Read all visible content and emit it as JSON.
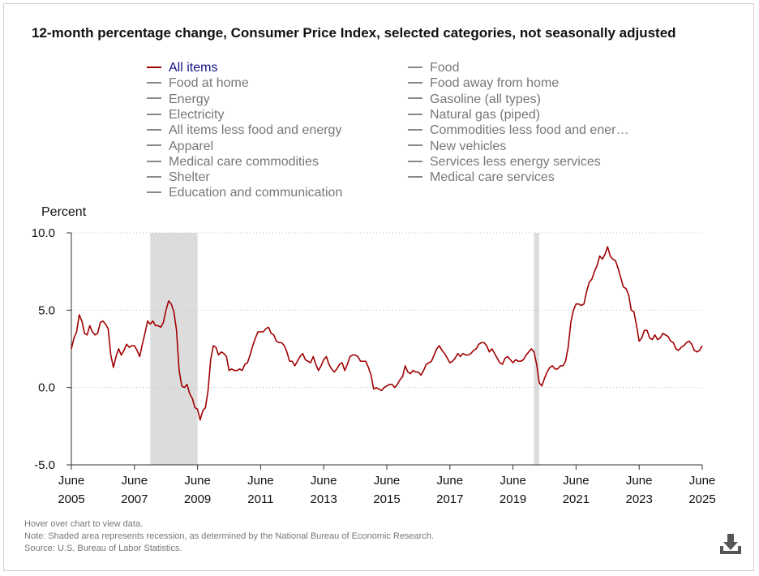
{
  "title": "12-month percentage change, Consumer Price Index, selected categories, not seasonally adjusted",
  "legend": [
    {
      "label": "All items",
      "active": true
    },
    {
      "label": "Food",
      "active": false
    },
    {
      "label": "Food at home",
      "active": false
    },
    {
      "label": "Food away from home",
      "active": false
    },
    {
      "label": "Energy",
      "active": false
    },
    {
      "label": "Gasoline (all types)",
      "active": false
    },
    {
      "label": "Electricity",
      "active": false
    },
    {
      "label": "Natural gas (piped)",
      "active": false
    },
    {
      "label": "All items less food and energy",
      "active": false
    },
    {
      "label": "Commodities less food and ener…",
      "active": false
    },
    {
      "label": "Apparel",
      "active": false
    },
    {
      "label": "New vehicles",
      "active": false
    },
    {
      "label": "Medical care commodities",
      "active": false
    },
    {
      "label": "Services less energy services",
      "active": false
    },
    {
      "label": "Shelter",
      "active": false
    },
    {
      "label": "Medical care services",
      "active": false
    },
    {
      "label": "Education and communication",
      "active": false
    }
  ],
  "chart_data": {
    "type": "line",
    "ylabel": "Percent",
    "ylim": [
      -5.0,
      10.0
    ],
    "yticks": [
      "10.0",
      "5.0",
      "0.0",
      "-5.0"
    ],
    "ytick_values": [
      10,
      5,
      0,
      -5
    ],
    "xlim": [
      "2005-06",
      "2025-06"
    ],
    "xticks": [
      {
        "month": "June",
        "year": "2005",
        "date": "2005-06"
      },
      {
        "month": "June",
        "year": "2007",
        "date": "2007-06"
      },
      {
        "month": "June",
        "year": "2009",
        "date": "2009-06"
      },
      {
        "month": "June",
        "year": "2011",
        "date": "2011-06"
      },
      {
        "month": "June",
        "year": "2013",
        "date": "2013-06"
      },
      {
        "month": "June",
        "year": "2015",
        "date": "2015-06"
      },
      {
        "month": "June",
        "year": "2017",
        "date": "2017-06"
      },
      {
        "month": "June",
        "year": "2019",
        "date": "2019-06"
      },
      {
        "month": "June",
        "year": "2021",
        "date": "2021-06"
      },
      {
        "month": "June",
        "year": "2023",
        "date": "2023-06"
      },
      {
        "month": "June",
        "year": "2025",
        "date": "2025-06"
      }
    ],
    "recessions": [
      {
        "start": "2007-12",
        "end": "2009-06"
      },
      {
        "start": "2020-02",
        "end": "2020-04"
      }
    ],
    "grid": "horizontal dotted",
    "series_color": "#a00000",
    "series": [
      {
        "name": "All items",
        "points": [
          [
            "2005-06",
            2.5
          ],
          [
            "2005-07",
            3.2
          ],
          [
            "2005-08",
            3.6
          ],
          [
            "2005-09",
            4.7
          ],
          [
            "2005-10",
            4.3
          ],
          [
            "2005-11",
            3.5
          ],
          [
            "2005-12",
            3.4
          ],
          [
            "2006-01",
            4.0
          ],
          [
            "2006-02",
            3.6
          ],
          [
            "2006-03",
            3.4
          ],
          [
            "2006-04",
            3.5
          ],
          [
            "2006-05",
            4.2
          ],
          [
            "2006-06",
            4.3
          ],
          [
            "2006-07",
            4.1
          ],
          [
            "2006-08",
            3.8
          ],
          [
            "2006-09",
            2.1
          ],
          [
            "2006-10",
            1.3
          ],
          [
            "2006-11",
            2.0
          ],
          [
            "2006-12",
            2.5
          ],
          [
            "2007-01",
            2.1
          ],
          [
            "2007-02",
            2.4
          ],
          [
            "2007-03",
            2.8
          ],
          [
            "2007-04",
            2.6
          ],
          [
            "2007-05",
            2.7
          ],
          [
            "2007-06",
            2.7
          ],
          [
            "2007-07",
            2.4
          ],
          [
            "2007-08",
            2.0
          ],
          [
            "2007-09",
            2.8
          ],
          [
            "2007-10",
            3.5
          ],
          [
            "2007-11",
            4.3
          ],
          [
            "2007-12",
            4.1
          ],
          [
            "2008-01",
            4.3
          ],
          [
            "2008-02",
            4.0
          ],
          [
            "2008-03",
            4.0
          ],
          [
            "2008-04",
            3.9
          ],
          [
            "2008-05",
            4.2
          ],
          [
            "2008-06",
            5.0
          ],
          [
            "2008-07",
            5.6
          ],
          [
            "2008-08",
            5.4
          ],
          [
            "2008-09",
            4.9
          ],
          [
            "2008-10",
            3.7
          ],
          [
            "2008-11",
            1.1
          ],
          [
            "2008-12",
            0.1
          ],
          [
            "2009-01",
            0.0
          ],
          [
            "2009-02",
            0.2
          ],
          [
            "2009-03",
            -0.4
          ],
          [
            "2009-04",
            -0.7
          ],
          [
            "2009-05",
            -1.3
          ],
          [
            "2009-06",
            -1.4
          ],
          [
            "2009-07",
            -2.1
          ],
          [
            "2009-08",
            -1.5
          ],
          [
            "2009-09",
            -1.3
          ],
          [
            "2009-10",
            -0.2
          ],
          [
            "2009-11",
            1.8
          ],
          [
            "2009-12",
            2.7
          ],
          [
            "2010-01",
            2.6
          ],
          [
            "2010-02",
            2.1
          ],
          [
            "2010-03",
            2.3
          ],
          [
            "2010-04",
            2.2
          ],
          [
            "2010-05",
            2.0
          ],
          [
            "2010-06",
            1.1
          ],
          [
            "2010-07",
            1.2
          ],
          [
            "2010-08",
            1.1
          ],
          [
            "2010-09",
            1.1
          ],
          [
            "2010-10",
            1.2
          ],
          [
            "2010-11",
            1.1
          ],
          [
            "2010-12",
            1.5
          ],
          [
            "2011-01",
            1.6
          ],
          [
            "2011-02",
            2.1
          ],
          [
            "2011-03",
            2.7
          ],
          [
            "2011-04",
            3.2
          ],
          [
            "2011-05",
            3.6
          ],
          [
            "2011-06",
            3.6
          ],
          [
            "2011-07",
            3.6
          ],
          [
            "2011-08",
            3.8
          ],
          [
            "2011-09",
            3.9
          ],
          [
            "2011-10",
            3.5
          ],
          [
            "2011-11",
            3.4
          ],
          [
            "2011-12",
            3.0
          ],
          [
            "2012-01",
            2.9
          ],
          [
            "2012-02",
            2.9
          ],
          [
            "2012-03",
            2.7
          ],
          [
            "2012-04",
            2.3
          ],
          [
            "2012-05",
            1.7
          ],
          [
            "2012-06",
            1.7
          ],
          [
            "2012-07",
            1.4
          ],
          [
            "2012-08",
            1.7
          ],
          [
            "2012-09",
            2.0
          ],
          [
            "2012-10",
            2.2
          ],
          [
            "2012-11",
            1.8
          ],
          [
            "2012-12",
            1.7
          ],
          [
            "2013-01",
            1.6
          ],
          [
            "2013-02",
            2.0
          ],
          [
            "2013-03",
            1.5
          ],
          [
            "2013-04",
            1.1
          ],
          [
            "2013-05",
            1.4
          ],
          [
            "2013-06",
            1.8
          ],
          [
            "2013-07",
            2.0
          ],
          [
            "2013-08",
            1.5
          ],
          [
            "2013-09",
            1.2
          ],
          [
            "2013-10",
            1.0
          ],
          [
            "2013-11",
            1.2
          ],
          [
            "2013-12",
            1.5
          ],
          [
            "2014-01",
            1.6
          ],
          [
            "2014-02",
            1.1
          ],
          [
            "2014-03",
            1.5
          ],
          [
            "2014-04",
            2.0
          ],
          [
            "2014-05",
            2.1
          ],
          [
            "2014-06",
            2.1
          ],
          [
            "2014-07",
            2.0
          ],
          [
            "2014-08",
            1.7
          ],
          [
            "2014-09",
            1.7
          ],
          [
            "2014-10",
            1.7
          ],
          [
            "2014-11",
            1.3
          ],
          [
            "2014-12",
            0.8
          ],
          [
            "2015-01",
            -0.1
          ],
          [
            "2015-02",
            0.0
          ],
          [
            "2015-03",
            -0.1
          ],
          [
            "2015-04",
            -0.2
          ],
          [
            "2015-05",
            0.0
          ],
          [
            "2015-06",
            0.1
          ],
          [
            "2015-07",
            0.2
          ],
          [
            "2015-08",
            0.2
          ],
          [
            "2015-09",
            0.0
          ],
          [
            "2015-10",
            0.2
          ],
          [
            "2015-11",
            0.5
          ],
          [
            "2015-12",
            0.7
          ],
          [
            "2016-01",
            1.4
          ],
          [
            "2016-02",
            1.0
          ],
          [
            "2016-03",
            0.9
          ],
          [
            "2016-04",
            1.1
          ],
          [
            "2016-05",
            1.0
          ],
          [
            "2016-06",
            1.0
          ],
          [
            "2016-07",
            0.8
          ],
          [
            "2016-08",
            1.1
          ],
          [
            "2016-09",
            1.5
          ],
          [
            "2016-10",
            1.6
          ],
          [
            "2016-11",
            1.7
          ],
          [
            "2016-12",
            2.1
          ],
          [
            "2017-01",
            2.5
          ],
          [
            "2017-02",
            2.7
          ],
          [
            "2017-03",
            2.4
          ],
          [
            "2017-04",
            2.2
          ],
          [
            "2017-05",
            1.9
          ],
          [
            "2017-06",
            1.6
          ],
          [
            "2017-07",
            1.7
          ],
          [
            "2017-08",
            1.9
          ],
          [
            "2017-09",
            2.2
          ],
          [
            "2017-10",
            2.0
          ],
          [
            "2017-11",
            2.2
          ],
          [
            "2017-12",
            2.1
          ],
          [
            "2018-01",
            2.1
          ],
          [
            "2018-02",
            2.2
          ],
          [
            "2018-03",
            2.4
          ],
          [
            "2018-04",
            2.5
          ],
          [
            "2018-05",
            2.8
          ],
          [
            "2018-06",
            2.9
          ],
          [
            "2018-07",
            2.9
          ],
          [
            "2018-08",
            2.7
          ],
          [
            "2018-09",
            2.3
          ],
          [
            "2018-10",
            2.5
          ],
          [
            "2018-11",
            2.2
          ],
          [
            "2018-12",
            1.9
          ],
          [
            "2019-01",
            1.6
          ],
          [
            "2019-02",
            1.5
          ],
          [
            "2019-03",
            1.9
          ],
          [
            "2019-04",
            2.0
          ],
          [
            "2019-05",
            1.8
          ],
          [
            "2019-06",
            1.6
          ],
          [
            "2019-07",
            1.8
          ],
          [
            "2019-08",
            1.7
          ],
          [
            "2019-09",
            1.7
          ],
          [
            "2019-10",
            1.8
          ],
          [
            "2019-11",
            2.1
          ],
          [
            "2019-12",
            2.3
          ],
          [
            "2020-01",
            2.5
          ],
          [
            "2020-02",
            2.3
          ],
          [
            "2020-03",
            1.5
          ],
          [
            "2020-04",
            0.3
          ],
          [
            "2020-05",
            0.1
          ],
          [
            "2020-06",
            0.6
          ],
          [
            "2020-07",
            1.0
          ],
          [
            "2020-08",
            1.3
          ],
          [
            "2020-09",
            1.4
          ],
          [
            "2020-10",
            1.2
          ],
          [
            "2020-11",
            1.2
          ],
          [
            "2020-12",
            1.4
          ],
          [
            "2021-01",
            1.4
          ],
          [
            "2021-02",
            1.7
          ],
          [
            "2021-03",
            2.6
          ],
          [
            "2021-04",
            4.2
          ],
          [
            "2021-05",
            5.0
          ],
          [
            "2021-06",
            5.4
          ],
          [
            "2021-07",
            5.4
          ],
          [
            "2021-08",
            5.3
          ],
          [
            "2021-09",
            5.4
          ],
          [
            "2021-10",
            6.2
          ],
          [
            "2021-11",
            6.8
          ],
          [
            "2021-12",
            7.0
          ],
          [
            "2022-01",
            7.5
          ],
          [
            "2022-02",
            7.9
          ],
          [
            "2022-03",
            8.5
          ],
          [
            "2022-04",
            8.3
          ],
          [
            "2022-05",
            8.6
          ],
          [
            "2022-06",
            9.1
          ],
          [
            "2022-07",
            8.5
          ],
          [
            "2022-08",
            8.3
          ],
          [
            "2022-09",
            8.2
          ],
          [
            "2022-10",
            7.7
          ],
          [
            "2022-11",
            7.1
          ],
          [
            "2022-12",
            6.5
          ],
          [
            "2023-01",
            6.4
          ],
          [
            "2023-02",
            6.0
          ],
          [
            "2023-03",
            5.0
          ],
          [
            "2023-04",
            4.9
          ],
          [
            "2023-05",
            4.0
          ],
          [
            "2023-06",
            3.0
          ],
          [
            "2023-07",
            3.2
          ],
          [
            "2023-08",
            3.7
          ],
          [
            "2023-09",
            3.7
          ],
          [
            "2023-10",
            3.2
          ],
          [
            "2023-11",
            3.1
          ],
          [
            "2023-12",
            3.4
          ],
          [
            "2024-01",
            3.1
          ],
          [
            "2024-02",
            3.2
          ],
          [
            "2024-03",
            3.5
          ],
          [
            "2024-04",
            3.4
          ],
          [
            "2024-05",
            3.3
          ],
          [
            "2024-06",
            3.0
          ],
          [
            "2024-07",
            2.9
          ],
          [
            "2024-08",
            2.5
          ],
          [
            "2024-09",
            2.4
          ],
          [
            "2024-10",
            2.6
          ],
          [
            "2024-11",
            2.7
          ],
          [
            "2024-12",
            2.9
          ],
          [
            "2025-01",
            3.0
          ],
          [
            "2025-02",
            2.8
          ],
          [
            "2025-03",
            2.4
          ],
          [
            "2025-04",
            2.3
          ],
          [
            "2025-05",
            2.4
          ],
          [
            "2025-06",
            2.7
          ]
        ]
      }
    ]
  },
  "notes": {
    "hover": "Hover over chart to view data.",
    "note": "Note: Shaded area represents recession, as determined by the National Bureau of Economic Research.",
    "source": "Source: U.S. Bureau of Labor Statistics."
  },
  "download_icon": "download-icon"
}
